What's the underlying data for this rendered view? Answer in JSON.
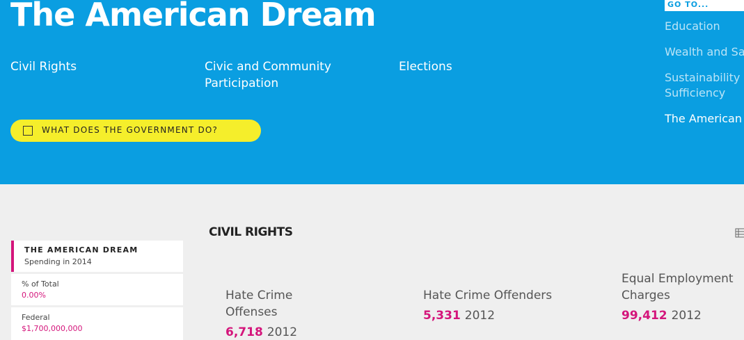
{
  "header": {
    "title": "The American Dream",
    "nav": [
      "Civil Rights",
      "Civic and Community Participation",
      "Elections"
    ],
    "button": "WHAT DOES THE GOVERNMENT DO?"
  },
  "goto": {
    "label": "GO TO...",
    "items": [
      "Education",
      "Wealth and Sav",
      "Sustainability a",
      "Sufficiency",
      "The American"
    ]
  },
  "sidebar": {
    "title": "THE AMERICAN DREAM",
    "subtitle": "Spending in 2014",
    "rows": [
      {
        "label": "% of Total",
        "value": "0.00%"
      },
      {
        "label": "Federal",
        "value": "$1,700,000,000"
      }
    ]
  },
  "section": {
    "title": "CIVIL RIGHTS",
    "stats": [
      {
        "label": "Hate Crime Offenses",
        "value": "6,718",
        "year": "2012"
      },
      {
        "label": "Hate Crime Offenders",
        "value": "5,331",
        "year": "2012"
      },
      {
        "label": "Equal Employment Charges",
        "value": "99,412",
        "year": "2012"
      }
    ]
  }
}
